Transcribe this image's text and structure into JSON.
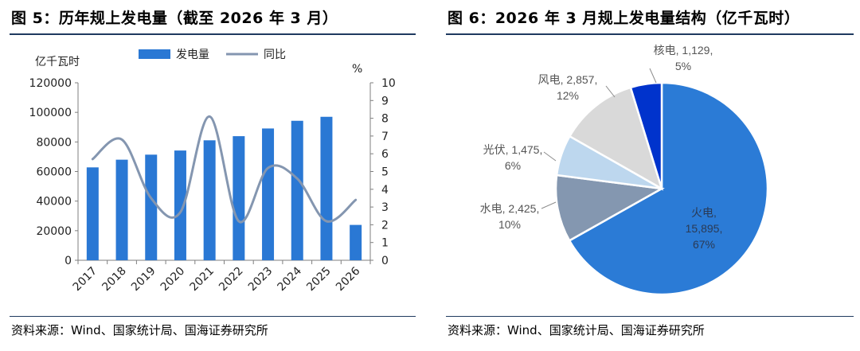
{
  "left": {
    "title": "图 5：历年规上发电量（截至 2026 年 3 月）",
    "source": "资料来源：Wind、国家统计局、国海证券研究所"
  },
  "right": {
    "title": "图 6：2026 年 3 月规上发电量结构（亿千瓦时）",
    "source": "资料来源：Wind、国家统计局、国海证券研究所"
  },
  "chart_data": [
    {
      "type": "bar+line",
      "categories": [
        "2017",
        "2018",
        "2019",
        "2020",
        "2021",
        "2022",
        "2023",
        "2024",
        "2025",
        "2026"
      ],
      "series": [
        {
          "name": "发电量",
          "axis": "left",
          "type": "bar",
          "color": "#2a78d4",
          "values": [
            62800,
            68000,
            71400,
            74200,
            81100,
            83900,
            89100,
            94300,
            97000,
            23900
          ]
        },
        {
          "name": "同比",
          "axis": "right",
          "type": "line",
          "color": "#8496b0",
          "values": [
            5.7,
            6.8,
            3.5,
            2.7,
            8.1,
            2.2,
            5.2,
            4.6,
            2.2,
            3.4
          ]
        }
      ],
      "y_left": {
        "label": "亿千瓦时",
        "min": 0,
        "max": 120000,
        "step": 20000,
        "ticks": [
          "0",
          "20000",
          "40000",
          "60000",
          "80000",
          "100000",
          "120000"
        ]
      },
      "y_right": {
        "label": "%",
        "min": 0,
        "max": 10,
        "step": 1,
        "ticks": [
          "0",
          "1",
          "2",
          "3",
          "4",
          "5",
          "6",
          "7",
          "8",
          "9",
          "10"
        ]
      },
      "legend": [
        "发电量",
        "同比"
      ],
      "legend_position": "top",
      "grid": false
    },
    {
      "type": "pie",
      "slices": [
        {
          "name": "火电",
          "value": 15895,
          "value_text": "15,895",
          "percent": "67%",
          "color": "#2b7bd6"
        },
        {
          "name": "水电",
          "value": 2425,
          "value_text": "2,425",
          "percent": "10%",
          "color": "#8497b0"
        },
        {
          "name": "光伏",
          "value": 1475,
          "value_text": "1,475",
          "percent": "6%",
          "color": "#bdd7ee"
        },
        {
          "name": "风电",
          "value": 2857,
          "value_text": "2,857",
          "percent": "12%",
          "color": "#d9d9d9"
        },
        {
          "name": "核电",
          "value": 1129,
          "value_text": "1,129",
          "percent": "5%",
          "color": "#0033cc"
        }
      ],
      "start": "top",
      "direction": "clockwise"
    }
  ]
}
